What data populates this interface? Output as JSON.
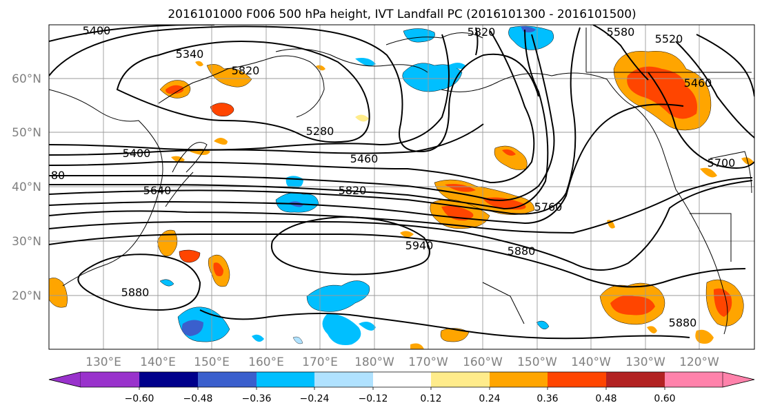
{
  "title": "2016101000 F006 500 hPa height, IVT Landfall PC (2016101300 - 2016101500)",
  "lat_labels": [
    "60°N",
    "50°N",
    "40°N",
    "30°N",
    "20°N"
  ],
  "lon_labels": [
    "130°E",
    "140°E",
    "150°E",
    "160°E",
    "170°E",
    "180°W",
    "170°W",
    "160°W",
    "150°W",
    "140°W",
    "130°W",
    "120°W"
  ],
  "contour_labels": [
    "5400",
    "5340",
    "5820",
    "5280",
    "5460",
    "5400",
    "5640",
    "5820",
    "5760",
    "5940",
    "5880",
    "5880",
    "5880",
    "5700",
    "5460",
    "5520",
    "5580",
    "5820",
    "80"
  ],
  "colorbar": {
    "colors": [
      "#9932cc",
      "#00008b",
      "#3a5fcd",
      "#00bfff",
      "#b0e2ff",
      "#ffffff",
      "#ffec8b",
      "#ffa500",
      "#ff4500",
      "#b22222",
      "#ff82ab"
    ],
    "tick_labels": [
      "−0.60",
      "−0.48",
      "−0.36",
      "−0.24",
      "−0.12",
      "0.12",
      "0.24",
      "0.36",
      "0.48",
      "0.60"
    ]
  }
}
